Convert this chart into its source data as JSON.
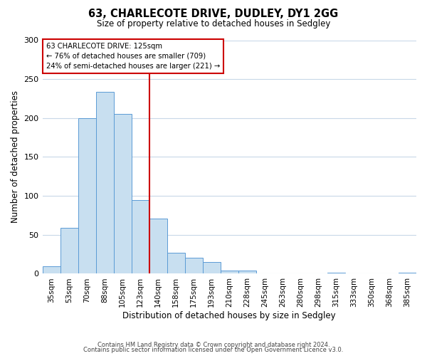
{
  "title": "63, CHARLECOTE DRIVE, DUDLEY, DY1 2GG",
  "subtitle": "Size of property relative to detached houses in Sedgley",
  "xlabel": "Distribution of detached houses by size in Sedgley",
  "ylabel": "Number of detached properties",
  "bar_labels": [
    "35sqm",
    "53sqm",
    "70sqm",
    "88sqm",
    "105sqm",
    "123sqm",
    "140sqm",
    "158sqm",
    "175sqm",
    "193sqm",
    "210sqm",
    "228sqm",
    "245sqm",
    "263sqm",
    "280sqm",
    "298sqm",
    "315sqm",
    "333sqm",
    "350sqm",
    "368sqm",
    "385sqm"
  ],
  "bar_values": [
    10,
    59,
    200,
    234,
    205,
    95,
    71,
    27,
    21,
    15,
    4,
    4,
    0,
    0,
    0,
    0,
    1,
    0,
    0,
    0,
    1
  ],
  "bar_color": "#c8dff0",
  "bar_edge_color": "#5b9bd5",
  "vline_x": 5.5,
  "vline_color": "#cc0000",
  "annotation_text": "63 CHARLECOTE DRIVE: 125sqm\n← 76% of detached houses are smaller (709)\n24% of semi-detached houses are larger (221) →",
  "annotation_box_color": "#ffffff",
  "annotation_box_edge": "#cc0000",
  "ylim": [
    0,
    300
  ],
  "yticks": [
    0,
    50,
    100,
    150,
    200,
    250,
    300
  ],
  "footer_line1": "Contains HM Land Registry data © Crown copyright and database right 2024.",
  "footer_line2": "Contains public sector information licensed under the Open Government Licence v3.0.",
  "background_color": "#ffffff",
  "grid_color": "#c8d8e8"
}
